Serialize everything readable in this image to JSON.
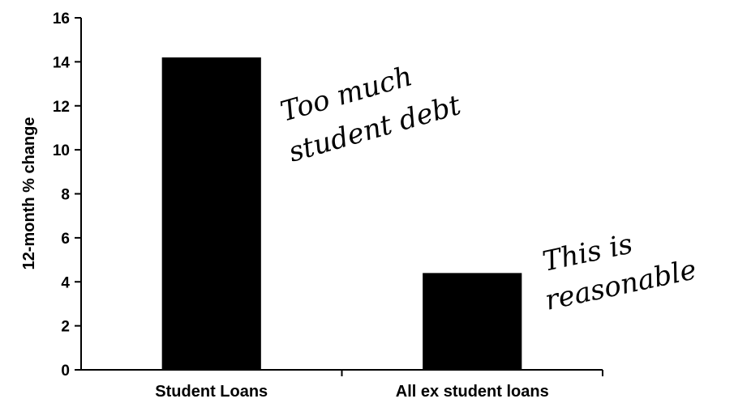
{
  "chart_data": {
    "type": "bar",
    "title": "",
    "xlabel": "",
    "ylabel": "12-month % change",
    "categories": [
      "Student Loans",
      "All ex student loans"
    ],
    "values": [
      14.2,
      4.4
    ],
    "ylim": [
      0,
      16
    ],
    "yticks": [
      "0",
      "2",
      "4",
      "6",
      "8",
      "10",
      "12",
      "14",
      "16"
    ],
    "bar_color": "#000000",
    "grid": false,
    "legend": "none",
    "annotations": [
      {
        "lines": [
          "Too much",
          "student debt"
        ],
        "near": "Student Loans"
      },
      {
        "lines": [
          "This is",
          "reasonable"
        ],
        "near": "All ex student loans"
      }
    ]
  }
}
